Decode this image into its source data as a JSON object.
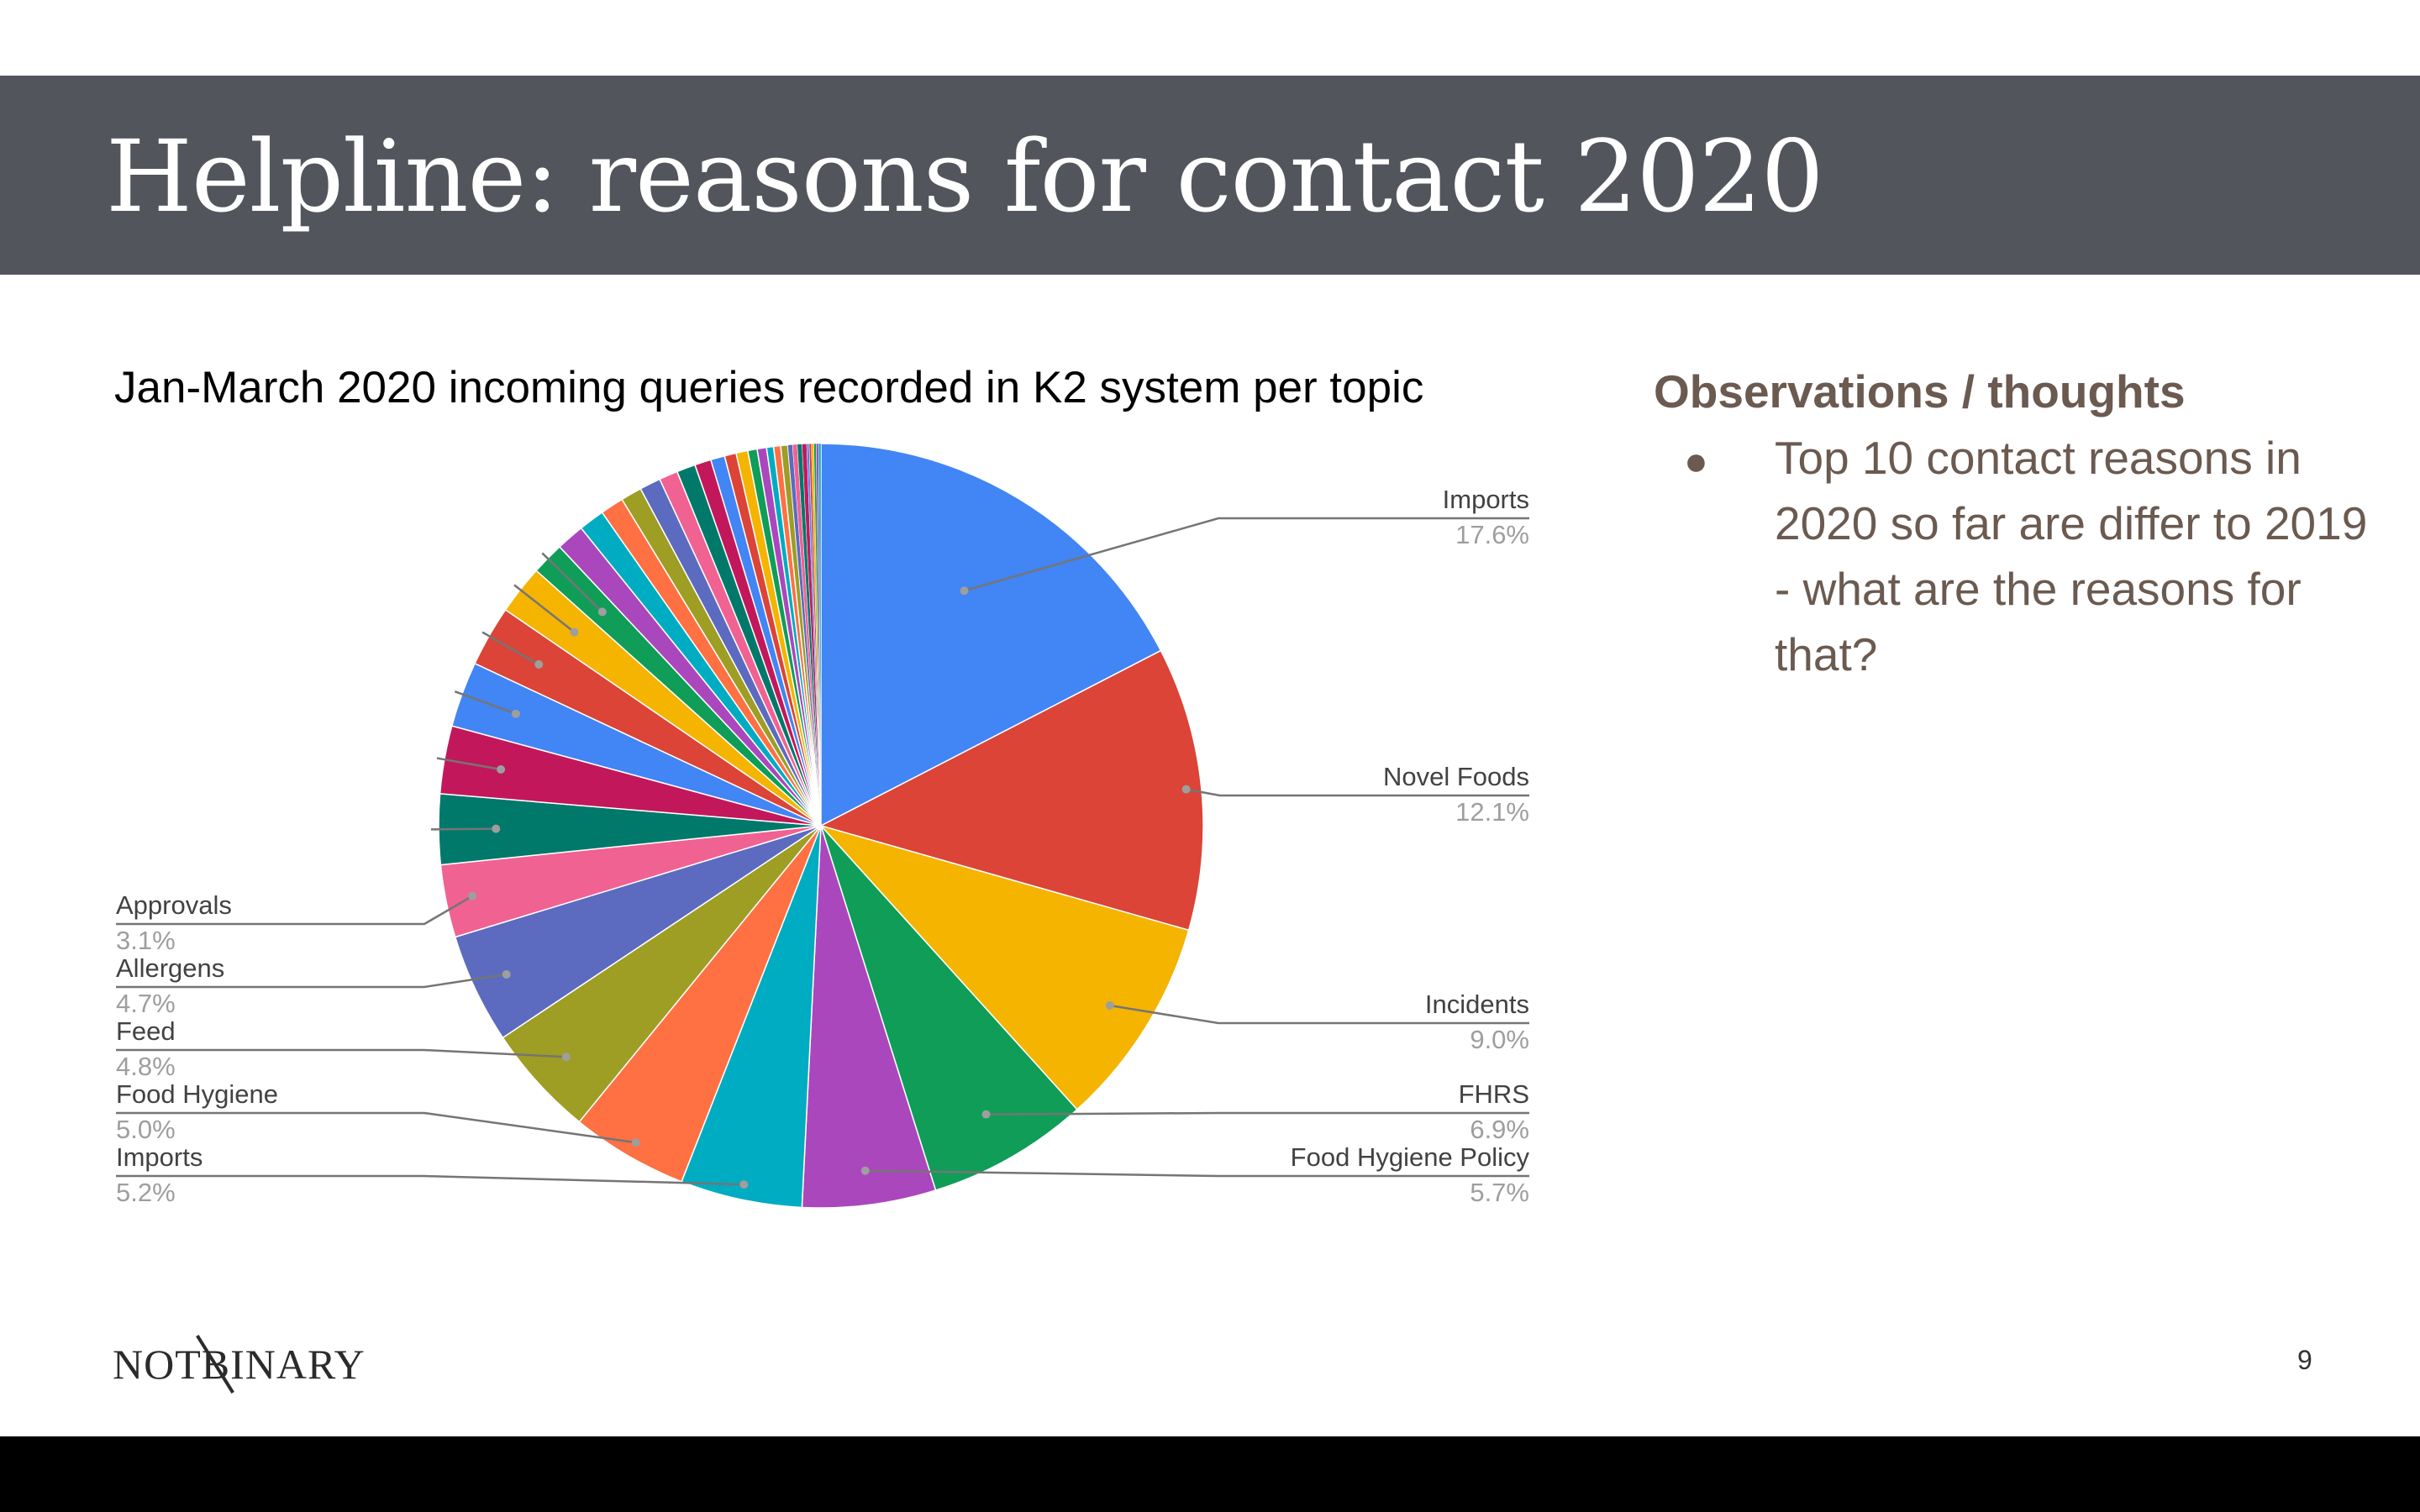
{
  "slide": {
    "title": "Helpline: reasons for contact 2020",
    "page_number": "9",
    "logo_text": "NOTBINARY"
  },
  "observations": {
    "heading": "Observations / thoughts",
    "bullet": "●",
    "text": "Top 10 contact reasons in 2020 so far are differ to 2019 -  what are the reasons for that?"
  },
  "chart_data": {
    "type": "pie",
    "title": "Jan-March 2020 incoming queries recorded in K2 system per topic",
    "slices": [
      {
        "label": "Imports",
        "value": 17.6,
        "color": "#4285f4",
        "show_label": true
      },
      {
        "label": "Novel Foods",
        "value": 12.1,
        "color": "#db4437",
        "show_label": true
      },
      {
        "label": "Incidents",
        "value": 9.0,
        "color": "#f4b400",
        "show_label": true
      },
      {
        "label": "FHRS",
        "value": 6.9,
        "color": "#0f9d58",
        "show_label": true
      },
      {
        "label": "Food Hygiene Policy",
        "value": 5.7,
        "color": "#ab47bc",
        "show_label": true
      },
      {
        "label": "Imports",
        "value": 5.2,
        "color": "#00acc1",
        "show_label": true
      },
      {
        "label": "Food Hygiene",
        "value": 5.0,
        "color": "#ff7043",
        "show_label": true
      },
      {
        "label": "Feed",
        "value": 4.8,
        "color": "#9e9d24",
        "show_label": true
      },
      {
        "label": "Allergens",
        "value": 4.7,
        "color": "#5c6bc0",
        "show_label": true
      },
      {
        "label": "Approvals",
        "value": 3.1,
        "color": "#f06292",
        "show_label": true
      },
      {
        "label": "",
        "value": 3.0,
        "color": "#00796b",
        "show_label": false
      },
      {
        "label": "",
        "value": 2.9,
        "color": "#c2185b",
        "show_label": false
      },
      {
        "label": "",
        "value": 2.8,
        "color": "#4285f4",
        "show_label": false
      },
      {
        "label": "",
        "value": 2.6,
        "color": "#db4437",
        "show_label": false
      },
      {
        "label": "",
        "value": 2.1,
        "color": "#f4b400",
        "show_label": false
      },
      {
        "label": "",
        "value": 1.4,
        "color": "#0f9d58",
        "show_label": false
      },
      {
        "label": "",
        "value": 1.2,
        "color": "#ab47bc",
        "show_label": false
      },
      {
        "label": "",
        "value": 1.1,
        "color": "#00acc1",
        "show_label": false
      },
      {
        "label": "",
        "value": 1.0,
        "color": "#ff7043",
        "show_label": false
      },
      {
        "label": "",
        "value": 0.9,
        "color": "#9e9d24",
        "show_label": false
      },
      {
        "label": "",
        "value": 0.9,
        "color": "#5c6bc0",
        "show_label": false
      },
      {
        "label": "",
        "value": 0.8,
        "color": "#f06292",
        "show_label": false
      },
      {
        "label": "",
        "value": 0.8,
        "color": "#00796b",
        "show_label": false
      },
      {
        "label": "",
        "value": 0.7,
        "color": "#c2185b",
        "show_label": false
      },
      {
        "label": "",
        "value": 0.6,
        "color": "#4285f4",
        "show_label": false
      },
      {
        "label": "",
        "value": 0.5,
        "color": "#db4437",
        "show_label": false
      },
      {
        "label": "",
        "value": 0.5,
        "color": "#f4b400",
        "show_label": false
      },
      {
        "label": "",
        "value": 0.4,
        "color": "#0f9d58",
        "show_label": false
      },
      {
        "label": "",
        "value": 0.4,
        "color": "#ab47bc",
        "show_label": false
      },
      {
        "label": "",
        "value": 0.3,
        "color": "#00acc1",
        "show_label": false
      },
      {
        "label": "",
        "value": 0.3,
        "color": "#ff7043",
        "show_label": false
      },
      {
        "label": "",
        "value": 0.3,
        "color": "#9e9d24",
        "show_label": false
      },
      {
        "label": "",
        "value": 0.2,
        "color": "#5c6bc0",
        "show_label": false
      },
      {
        "label": "",
        "value": 0.2,
        "color": "#f06292",
        "show_label": false
      },
      {
        "label": "",
        "value": 0.2,
        "color": "#00796b",
        "show_label": false
      },
      {
        "label": "",
        "value": 0.2,
        "color": "#c2185b",
        "show_label": false
      },
      {
        "label": "",
        "value": 0.1,
        "color": "#4285f4",
        "show_label": false
      },
      {
        "label": "",
        "value": 0.1,
        "color": "#db4437",
        "show_label": false
      },
      {
        "label": "",
        "value": 0.1,
        "color": "#f4b400",
        "show_label": false
      },
      {
        "label": "",
        "value": 0.1,
        "color": "#0f9d58",
        "show_label": false
      },
      {
        "label": "",
        "value": 0.1,
        "color": "#ab47bc",
        "show_label": false
      },
      {
        "label": "",
        "value": 0.1,
        "color": "#00acc1",
        "show_label": false
      }
    ]
  }
}
